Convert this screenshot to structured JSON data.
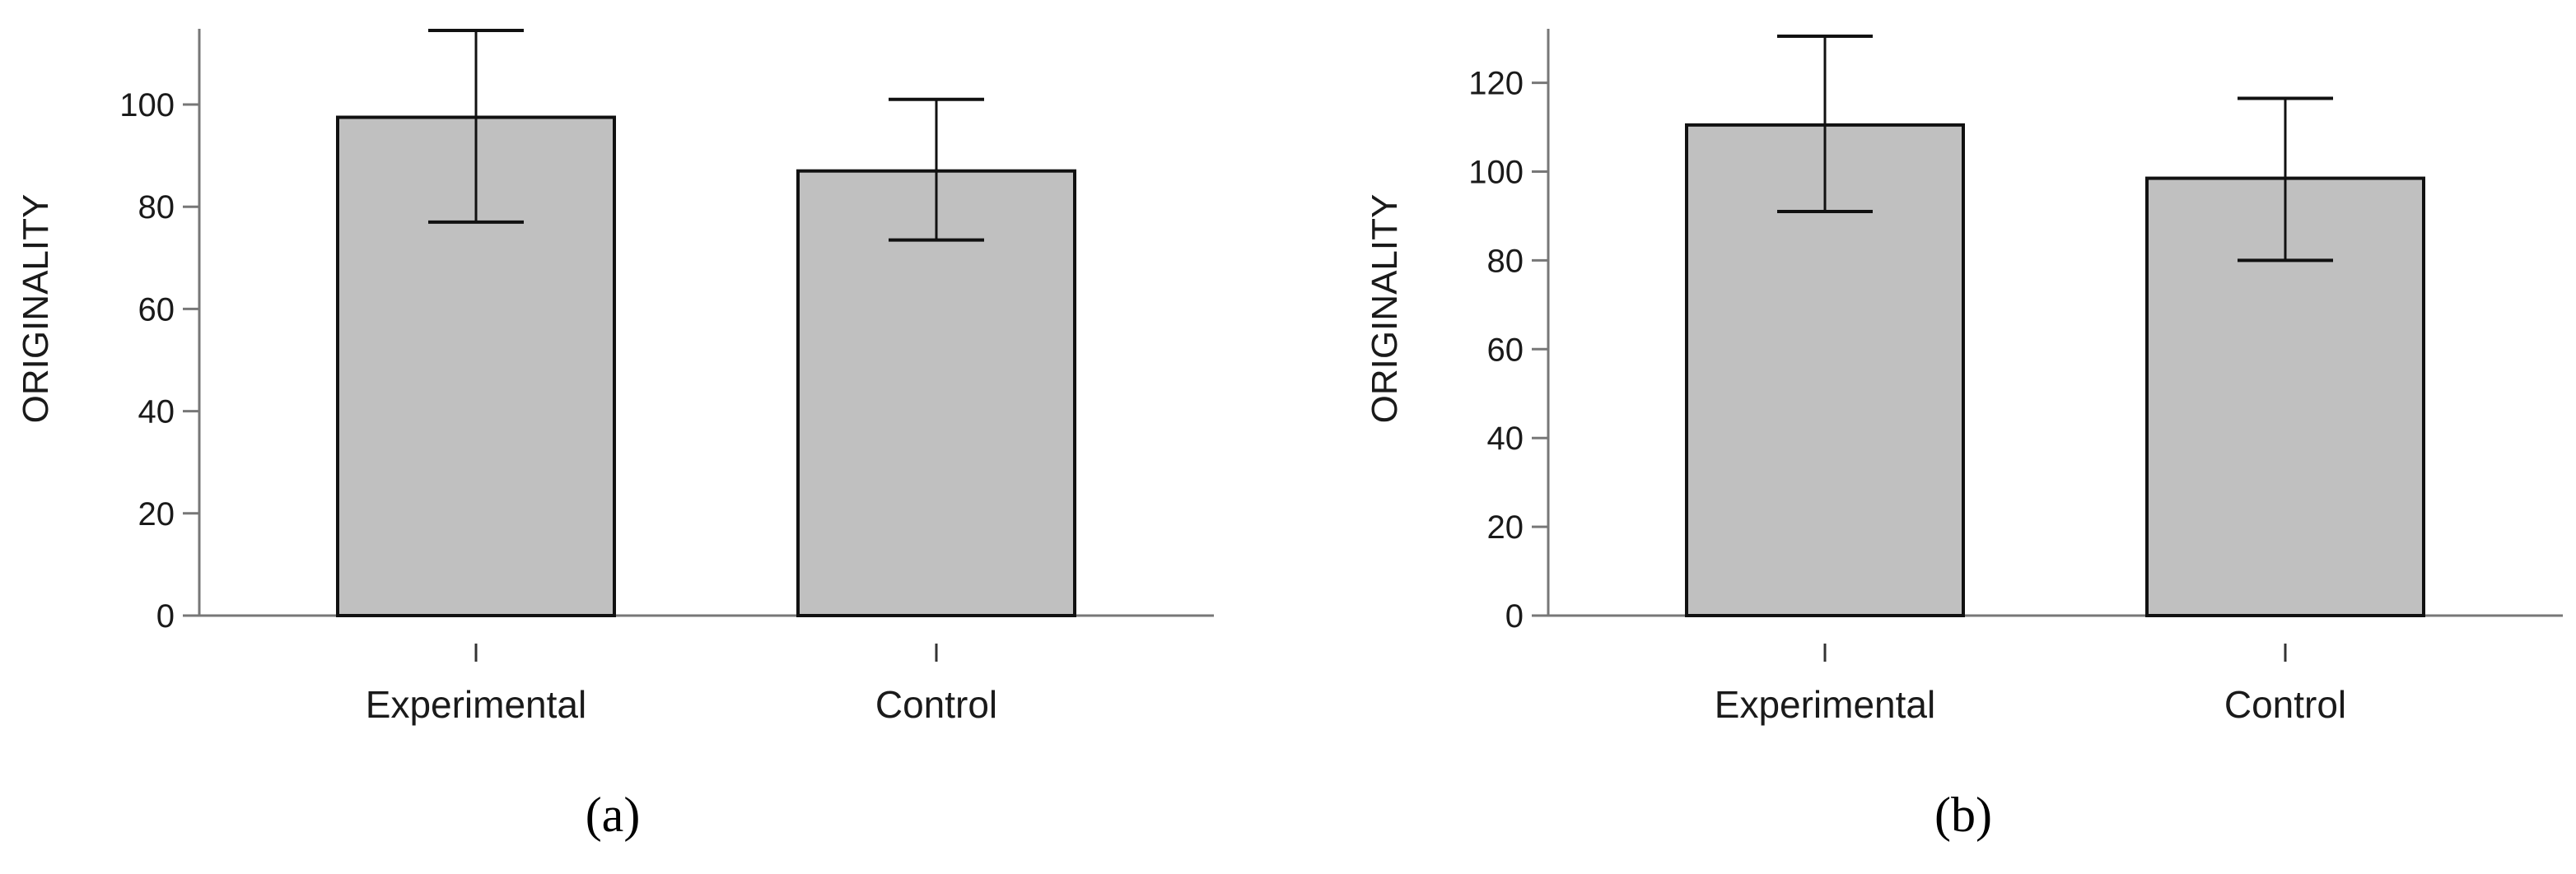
{
  "chart_data": [
    {
      "type": "bar",
      "panel_label": "(a)",
      "categories": [
        "Experimental",
        "Control"
      ],
      "values": [
        97.5,
        87.0
      ],
      "error_low": [
        77.0,
        73.5
      ],
      "error_high": [
        114.5,
        101.0
      ],
      "ylabel": "ORIGINALITY",
      "xlabel": "",
      "ylim": [
        0,
        115
      ],
      "yticks": [
        0,
        20,
        40,
        60,
        80,
        100
      ],
      "grid": false,
      "colors": {
        "bar_fill": "#c0c0c0",
        "bar_stroke": "#111111",
        "axis": "#777777"
      }
    },
    {
      "type": "bar",
      "panel_label": "(b)",
      "categories": [
        "Experimental",
        "Control"
      ],
      "values": [
        110.5,
        98.5
      ],
      "error_low": [
        91.0,
        80.0
      ],
      "error_high": [
        130.5,
        116.5
      ],
      "ylabel": "ORIGINALITY",
      "xlabel": "",
      "ylim": [
        0,
        132
      ],
      "yticks": [
        0,
        20,
        40,
        60,
        80,
        100,
        120
      ],
      "grid": false,
      "colors": {
        "bar_fill": "#c0c0c0",
        "bar_stroke": "#111111",
        "axis": "#777777"
      }
    }
  ]
}
